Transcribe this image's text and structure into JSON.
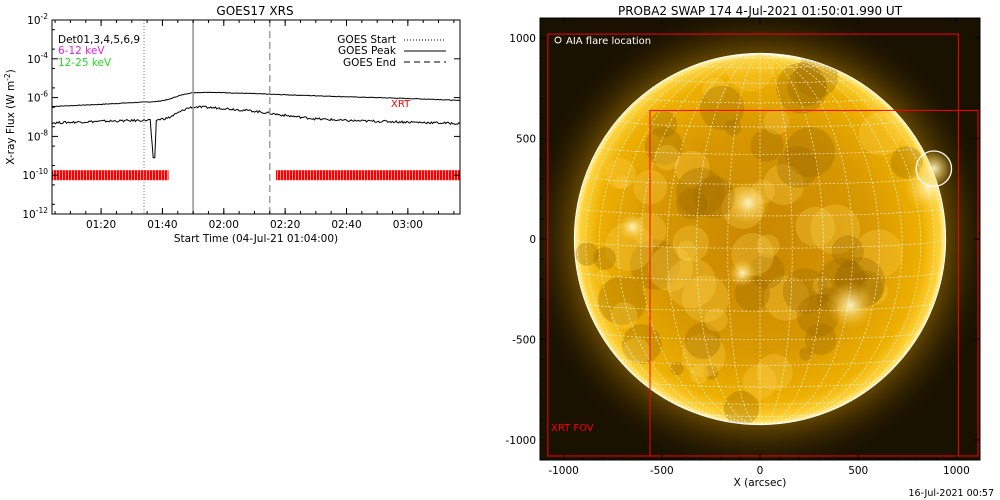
{
  "footer_timestamp": "16-Jul-2021 00:57",
  "chart_data": [
    {
      "type": "line",
      "title": "GOES17 XRS",
      "xlabel": "Start Time (04-Jul-21 01:04:00)",
      "ylabel": "X-ray Flux (W m",
      "ylabel_sup": "-2",
      "ylabel_close": ")",
      "y_scale": "log",
      "ylim": [
        1e-12,
        0.01
      ],
      "xlim": [
        "01:04",
        "03:17"
      ],
      "x_ticks": [
        "01:20",
        "01:40",
        "02:00",
        "02:20",
        "02:40",
        "03:00"
      ],
      "y_tick_bases": [
        "10",
        "10",
        "10",
        "10",
        "10",
        "10"
      ],
      "y_tick_exps": [
        "-12",
        "-10",
        "-8",
        "-6",
        "-4",
        "-2"
      ],
      "y_tick_values": [
        1e-12,
        1e-10,
        1e-08,
        1e-06,
        0.0001,
        0.01
      ],
      "det_label": "Det01,3,4,5,6,9",
      "band_labels": [
        {
          "text": "6-12 keV",
          "color": "#dd22dd"
        },
        {
          "text": "12-25 keV",
          "color": "#22dd22"
        }
      ],
      "legend_entries": [
        {
          "text": "GOES Start",
          "style": "dotted"
        },
        {
          "text": "GOES Peak",
          "style": "solid"
        },
        {
          "text": "GOES End",
          "style": "dashed"
        }
      ],
      "markers": {
        "start": "01:34",
        "peak": "01:50",
        "end": "02:15"
      },
      "xrt_label": "XRT",
      "series": [
        {
          "key": "long_channel",
          "color": "#000000",
          "x": [
            "01:04",
            "01:20",
            "01:30",
            "01:38",
            "01:42",
            "01:45",
            "01:48",
            "01:50",
            "01:55",
            "02:00",
            "02:10",
            "02:20",
            "02:30",
            "02:40",
            "02:50",
            "03:00",
            "03:10",
            "03:17"
          ],
          "y": [
            3.5e-07,
            4.5e-07,
            5.5e-07,
            6.2e-07,
            8e-07,
            1.2e-06,
            1.6e-06,
            1.8e-06,
            1.9e-06,
            1.8e-06,
            1.6e-06,
            1.4e-06,
            1.25e-06,
            1.1e-06,
            1e-06,
            9e-07,
            8e-07,
            7e-07
          ]
        },
        {
          "key": "short_channel",
          "color": "#000000",
          "x": [
            "01:04",
            "01:20",
            "01:30",
            "01:36",
            "01:37",
            "01:37.5",
            "01:38",
            "01:42",
            "01:45",
            "01:48",
            "01:50",
            "01:55",
            "02:00",
            "02:10",
            "02:20",
            "02:30",
            "02:40",
            "02:50",
            "03:00",
            "03:10",
            "03:17"
          ],
          "y": [
            5e-08,
            6e-08,
            6.5e-08,
            7e-08,
            7e-10,
            7e-10,
            7e-08,
            9e-08,
            1.6e-07,
            2.8e-07,
            3.3e-07,
            3.1e-07,
            2.8e-07,
            2e-07,
            1.2e-07,
            8e-08,
            6.5e-08,
            6e-08,
            5.5e-08,
            5e-08,
            4.5e-08
          ]
        }
      ],
      "xrt_coverage": {
        "value": 1e-10,
        "color": "#ff0000",
        "segments": [
          [
            "01:04",
            "01:42"
          ],
          [
            "02:17",
            "03:17"
          ]
        ]
      }
    },
    {
      "type": "image",
      "title": "PROBA2 SWAP 174  4-Jul-2021 01:50:01.990 UT",
      "xlabel": "X (arcsec)",
      "ylabel": "",
      "xlim": [
        -1120,
        1120
      ],
      "ylim": [
        -1100,
        1100
      ],
      "x_ticks": [
        "-1000",
        "-500",
        "0",
        "500",
        "1000"
      ],
      "x_tick_values": [
        -1000,
        -500,
        0,
        500,
        1000
      ],
      "y_ticks": [
        "1000",
        "500",
        "0",
        "-500",
        "-1000"
      ],
      "y_tick_values": [
        1000,
        500,
        0,
        -500,
        -1000
      ],
      "solar_radius_arcsec": 945,
      "flare_label": "AIA flare location",
      "flare_center_arcsec": [
        885,
        350
      ],
      "flare_radius_arcsec": 90,
      "xrt_fov_label": "XRT FOV",
      "red_box_outer": [
        -1080,
        -1080,
        1010,
        1020
      ],
      "red_box_inner": [
        -560,
        -1080,
        1110,
        640
      ],
      "colors": {
        "disk": "#e8a200",
        "limb": "#fff1a0",
        "background": "#1a1200",
        "grid": "#ffffff",
        "fov": "#ff0000"
      }
    }
  ]
}
